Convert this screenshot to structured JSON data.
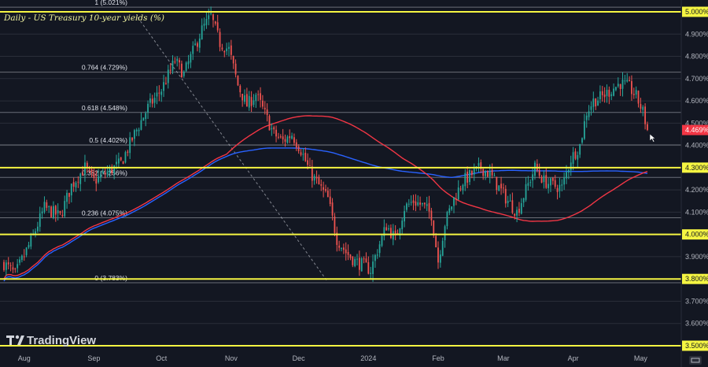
{
  "chart_data": {
    "type": "candlestick",
    "title": "Daily - US Treasury 10-year yields (%)",
    "watermark": "TradingView",
    "ylim": [
      3.5,
      5.02
    ],
    "y_ticks": [
      "5.000%",
      "4.900%",
      "4.800%",
      "4.700%",
      "4.600%",
      "4.500%",
      "4.400%",
      "4.300%",
      "4.200%",
      "4.100%",
      "4.000%",
      "3.900%",
      "3.800%",
      "3.700%",
      "3.600%",
      "3.500%"
    ],
    "y_tick_values": [
      5.0,
      4.9,
      4.8,
      4.7,
      4.6,
      4.5,
      4.4,
      4.3,
      4.2,
      4.1,
      4.0,
      3.9,
      3.8,
      3.7,
      3.6,
      3.5
    ],
    "highlighted_levels": [
      {
        "value": 5.0,
        "label": "5.000%"
      },
      {
        "value": 4.3,
        "label": "4.300%"
      },
      {
        "value": 4.0,
        "label": "4.000%"
      },
      {
        "value": 3.8,
        "label": "3.800%"
      },
      {
        "value": 3.5,
        "label": "3.500%"
      }
    ],
    "last_price": {
      "value": 4.469,
      "label": "4.469%",
      "color": "#f23645"
    },
    "x_labels": [
      {
        "day": 9,
        "label": "Aug"
      },
      {
        "day": 40,
        "label": "Sep"
      },
      {
        "day": 70,
        "label": "Oct"
      },
      {
        "day": 101,
        "label": "Nov"
      },
      {
        "day": 131,
        "label": "Dec"
      },
      {
        "day": 162,
        "label": "2024"
      },
      {
        "day": 193,
        "label": "Feb"
      },
      {
        "day": 222,
        "label": "Mar"
      },
      {
        "day": 253,
        "label": "Apr"
      },
      {
        "day": 283,
        "label": "May"
      }
    ],
    "fibonacci": [
      {
        "value": 5.021,
        "label": "1 (5.021%)"
      },
      {
        "value": 4.729,
        "label": "0.764 (4.729%)"
      },
      {
        "value": 4.548,
        "label": "0.618 (4.548%)"
      },
      {
        "value": 4.402,
        "label": "0.5 (4.402%)"
      },
      {
        "value": 4.256,
        "label": "0.382 (4.256%)"
      },
      {
        "value": 4.075,
        "label": "0.236 (4.075%)"
      },
      {
        "value": 3.783,
        "label": "0 (3.783%)"
      }
    ],
    "colors": {
      "background": "#131722",
      "up": "#26a69a",
      "down": "#ef5350",
      "ma_red": "#f23645",
      "ma_blue": "#2962ff",
      "highlight": "#f5f542",
      "grid": "#2a2e39"
    },
    "anchors": [
      [
        0,
        3.87
      ],
      [
        5,
        3.82
      ],
      [
        12,
        3.97
      ],
      [
        18,
        4.12
      ],
      [
        25,
        4.08
      ],
      [
        30,
        4.22
      ],
      [
        36,
        4.3
      ],
      [
        40,
        4.24
      ],
      [
        46,
        4.28
      ],
      [
        52,
        4.32
      ],
      [
        58,
        4.45
      ],
      [
        64,
        4.57
      ],
      [
        70,
        4.65
      ],
      [
        76,
        4.78
      ],
      [
        80,
        4.72
      ],
      [
        84,
        4.82
      ],
      [
        88,
        4.92
      ],
      [
        92,
        4.98
      ],
      [
        96,
        4.86
      ],
      [
        100,
        4.83
      ],
      [
        104,
        4.67
      ],
      [
        108,
        4.58
      ],
      [
        112,
        4.63
      ],
      [
        116,
        4.54
      ],
      [
        120,
        4.45
      ],
      [
        124,
        4.42
      ],
      [
        128,
        4.45
      ],
      [
        132,
        4.38
      ],
      [
        136,
        4.28
      ],
      [
        140,
        4.22
      ],
      [
        144,
        4.16
      ],
      [
        148,
        3.98
      ],
      [
        152,
        3.92
      ],
      [
        156,
        3.88
      ],
      [
        160,
        3.86
      ],
      [
        163,
        3.84
      ],
      [
        166,
        3.93
      ],
      [
        170,
        4.04
      ],
      [
        174,
        3.98
      ],
      [
        178,
        4.12
      ],
      [
        182,
        4.15
      ],
      [
        186,
        4.13
      ],
      [
        190,
        4.09
      ],
      [
        193,
        3.88
      ],
      [
        196,
        4.05
      ],
      [
        200,
        4.16
      ],
      [
        204,
        4.24
      ],
      [
        208,
        4.27
      ],
      [
        212,
        4.3
      ],
      [
        216,
        4.27
      ],
      [
        220,
        4.21
      ],
      [
        224,
        4.15
      ],
      [
        228,
        4.1
      ],
      [
        232,
        4.2
      ],
      [
        236,
        4.3
      ],
      [
        240,
        4.24
      ],
      [
        244,
        4.22
      ],
      [
        248,
        4.21
      ],
      [
        252,
        4.34
      ],
      [
        256,
        4.4
      ],
      [
        259,
        4.55
      ],
      [
        262,
        4.6
      ],
      [
        266,
        4.62
      ],
      [
        270,
        4.65
      ],
      [
        274,
        4.68
      ],
      [
        278,
        4.66
      ],
      [
        281,
        4.62
      ],
      [
        284,
        4.55
      ],
      [
        286,
        4.469
      ]
    ]
  }
}
